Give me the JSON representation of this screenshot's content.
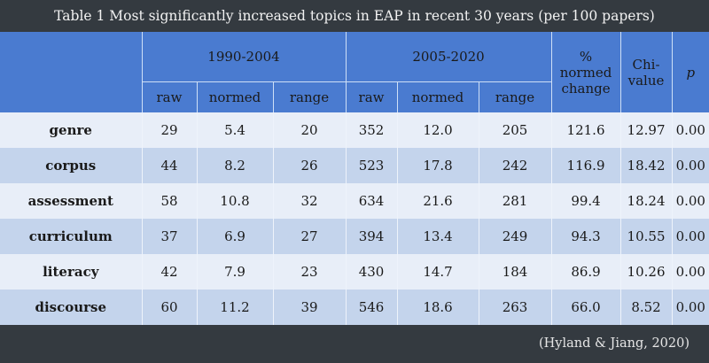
{
  "caption": "Table 1 Most significantly increased topics in EAP in recent 30 years (per 100 papers)",
  "credit": "(Hyland & Jiang, 2020)",
  "header": {
    "period1": "1990-2004",
    "period2": "2005-2020",
    "pct_change": "% normed change",
    "chi": "Chi-value",
    "p": "p",
    "sub": [
      "raw",
      "normed",
      "range",
      "raw",
      "normed",
      "range"
    ]
  },
  "rows": [
    {
      "topic": "genre",
      "cells": [
        "29",
        "5.4",
        "20",
        "352",
        "12.0",
        "205",
        "121.6",
        "12.97",
        "0.00"
      ]
    },
    {
      "topic": "corpus",
      "cells": [
        "44",
        "8.2",
        "26",
        "523",
        "17.8",
        "242",
        "116.9",
        "18.42",
        "0.00"
      ]
    },
    {
      "topic": "assessment",
      "cells": [
        "58",
        "10.8",
        "32",
        "634",
        "21.6",
        "281",
        "99.4",
        "18.24",
        "0.00"
      ]
    },
    {
      "topic": "curriculum",
      "cells": [
        "37",
        "6.9",
        "27",
        "394",
        "13.4",
        "249",
        "94.3",
        "10.55",
        "0.00"
      ]
    },
    {
      "topic": "literacy",
      "cells": [
        "42",
        "7.9",
        "23",
        "430",
        "14.7",
        "184",
        "86.9",
        "10.26",
        "0.00"
      ]
    },
    {
      "topic": "discourse",
      "cells": [
        "60",
        "11.2",
        "39",
        "546",
        "18.6",
        "263",
        "66.0",
        "8.52",
        "0.00"
      ]
    }
  ]
}
